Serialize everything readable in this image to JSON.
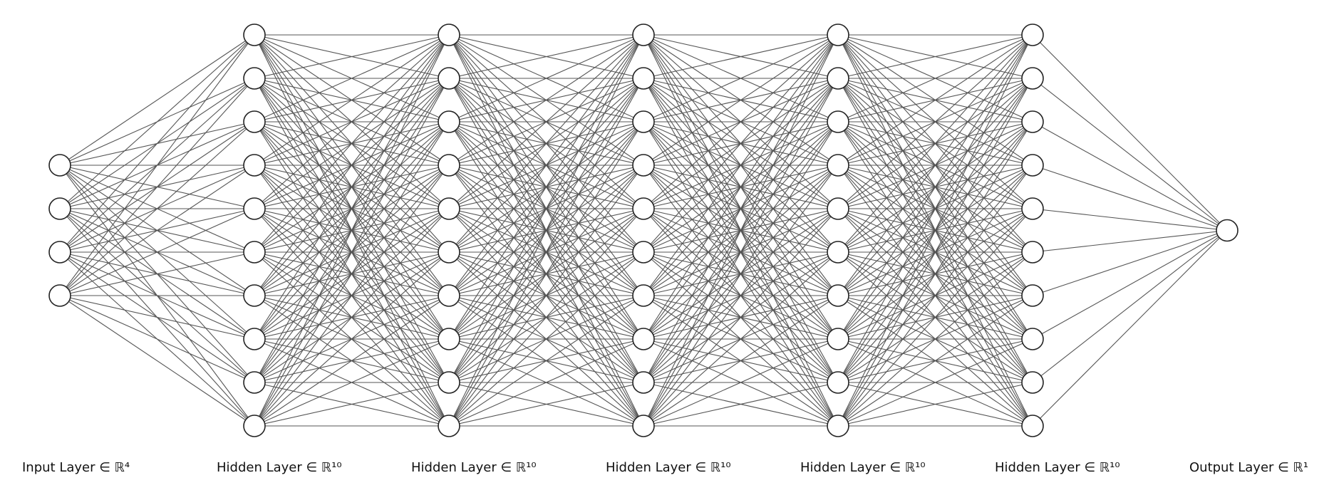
{
  "diagram": {
    "type": "neural-network",
    "colors": {
      "edge": "#555555",
      "node_fill": "#ffffff",
      "node_stroke": "#222222",
      "text": "#111111",
      "background": "#ffffff"
    },
    "layers": [
      {
        "label": "Input Layer ∈ ℝ⁴",
        "nodes": 4
      },
      {
        "label": "Hidden Layer ∈ ℝ¹⁰",
        "nodes": 10
      },
      {
        "label": "Hidden Layer ∈ ℝ¹⁰",
        "nodes": 10
      },
      {
        "label": "Hidden Layer ∈ ℝ¹⁰",
        "nodes": 10
      },
      {
        "label": "Hidden Layer ∈ ℝ¹⁰",
        "nodes": 10
      },
      {
        "label": "Hidden Layer ∈ ℝ¹⁰",
        "nodes": 10
      },
      {
        "label": "Output Layer ∈ ℝ¹",
        "nodes": 1
      }
    ]
  }
}
